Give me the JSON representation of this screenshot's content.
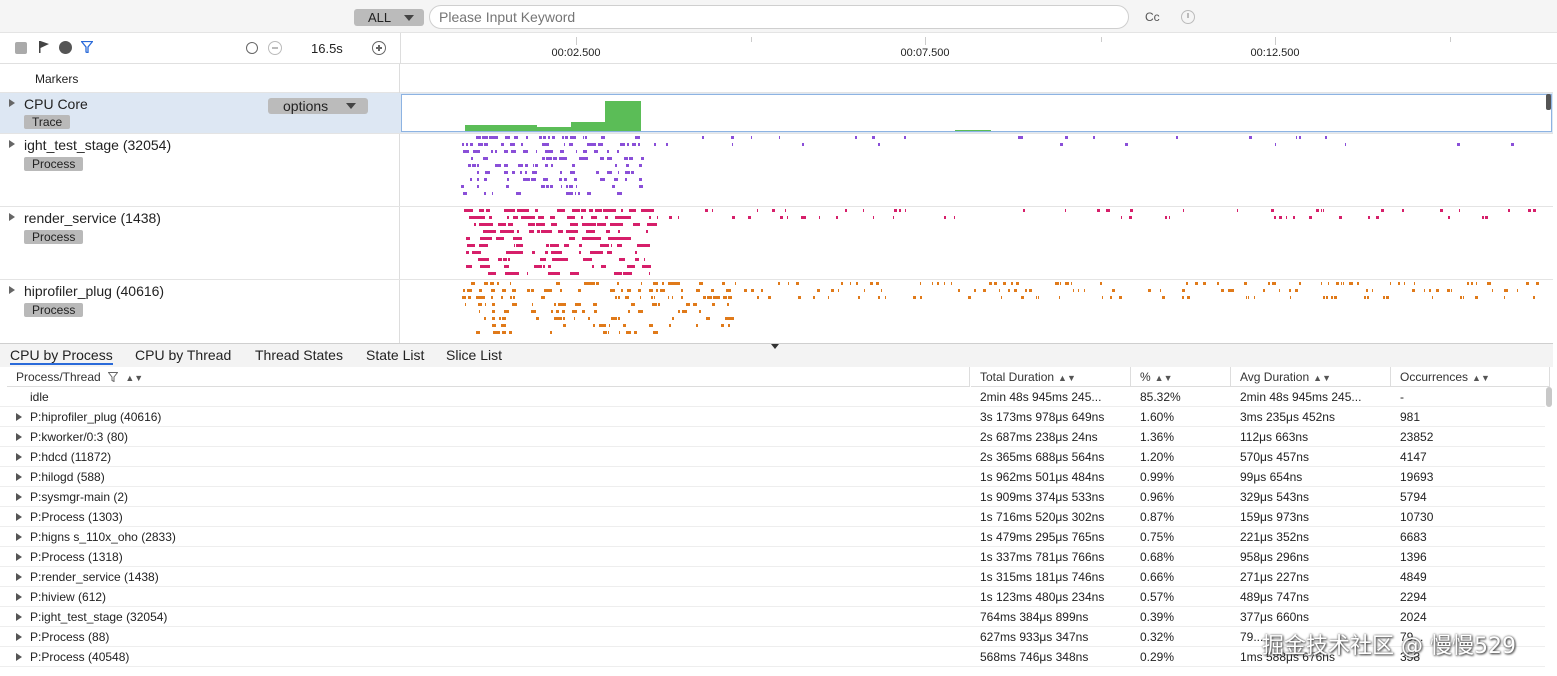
{
  "search": {
    "scope": "ALL",
    "placeholder": "Please Input Keyword",
    "case_label": "Cc"
  },
  "toolbar": {
    "duration": "16.5s",
    "icons": [
      "stop-icon",
      "flag-icon",
      "globe-icon",
      "filter-icon",
      "timer-icon",
      "zoom-out-icon",
      "zoom-in-icon"
    ]
  },
  "timeline": {
    "ticks": [
      "00:02.500",
      "00:07.500",
      "00:12.500"
    ]
  },
  "tracks": {
    "markers": "Markers",
    "cpu": {
      "name": "CPU Core",
      "tag": "Trace",
      "options": "options"
    },
    "processes": [
      {
        "name": "ight_test_stage (32054)",
        "tag": "Process",
        "color": "#8a4fd8"
      },
      {
        "name": "render_service (1438)",
        "tag": "Process",
        "color": "#d61f6a"
      },
      {
        "name": "hiprofiler_plug (40616)",
        "tag": "Process",
        "color": "#e07a1a"
      }
    ],
    "cpu_color": "#5bbd57"
  },
  "tabs": [
    "CPU by Process",
    "CPU by Thread",
    "Thread States",
    "State List",
    "Slice List"
  ],
  "table": {
    "headers": [
      "Process/Thread",
      "Total Duration",
      "%",
      "Avg Duration",
      "Occurrences"
    ],
    "rows": [
      {
        "name": "idle",
        "expand": false,
        "total": "2min 48s 945ms 245...",
        "pct": "85.32%",
        "avg": "2min 48s 945ms 245...",
        "occ": "-"
      },
      {
        "name": "P:hiprofiler_plug (40616)",
        "expand": true,
        "total": "3s 173ms 978μs 649ns",
        "pct": "1.60%",
        "avg": "3ms 235μs 452ns",
        "occ": "981"
      },
      {
        "name": "P:kworker/0:3 (80)",
        "expand": true,
        "total": "2s 687ms 238μs 24ns",
        "pct": "1.36%",
        "avg": "112μs 663ns",
        "occ": "23852"
      },
      {
        "name": "P:hdcd (11872)",
        "expand": true,
        "total": "2s 365ms 688μs 564ns",
        "pct": "1.20%",
        "avg": "570μs 457ns",
        "occ": "4147"
      },
      {
        "name": "P:hilogd (588)",
        "expand": true,
        "total": "1s 962ms 501μs 484ns",
        "pct": "0.99%",
        "avg": "99μs 654ns",
        "occ": "19693"
      },
      {
        "name": "P:sysmgr-main (2)",
        "expand": true,
        "total": "1s 909ms 374μs 533ns",
        "pct": "0.96%",
        "avg": "329μs 543ns",
        "occ": "5794"
      },
      {
        "name": "P:Process (1303)",
        "expand": true,
        "total": "1s 716ms 520μs 302ns",
        "pct": "0.87%",
        "avg": "159μs 973ns",
        "occ": "10730"
      },
      {
        "name": "P:higns s_110x_oho (2833)",
        "expand": true,
        "total": "1s 479ms 295μs 765ns",
        "pct": "0.75%",
        "avg": "221μs 352ns",
        "occ": "6683"
      },
      {
        "name": "P:Process (1318)",
        "expand": true,
        "total": "1s 337ms 781μs 766ns",
        "pct": "0.68%",
        "avg": "958μs 296ns",
        "occ": "1396"
      },
      {
        "name": "P:render_service (1438)",
        "expand": true,
        "total": "1s 315ms 181μs 746ns",
        "pct": "0.66%",
        "avg": "271μs 227ns",
        "occ": "4849"
      },
      {
        "name": "P:hiview (612)",
        "expand": true,
        "total": "1s 123ms 480μs 234ns",
        "pct": "0.57%",
        "avg": "489μs 747ns",
        "occ": "2294"
      },
      {
        "name": "P:ight_test_stage (32054)",
        "expand": true,
        "total": "764ms 384μs 899ns",
        "pct": "0.39%",
        "avg": "377μs 660ns",
        "occ": "2024"
      },
      {
        "name": "P:Process (88)",
        "expand": true,
        "total": "627ms 933μs 347ns",
        "pct": "0.32%",
        "avg": "79...",
        "occ": "79..."
      },
      {
        "name": "P:Process (40548)",
        "expand": true,
        "total": "568ms 746μs 348ns",
        "pct": "0.29%",
        "avg": "1ms 588μs 676ns",
        "occ": "358"
      }
    ]
  },
  "watermark": "掘金技术社区 @ 慢慢529"
}
